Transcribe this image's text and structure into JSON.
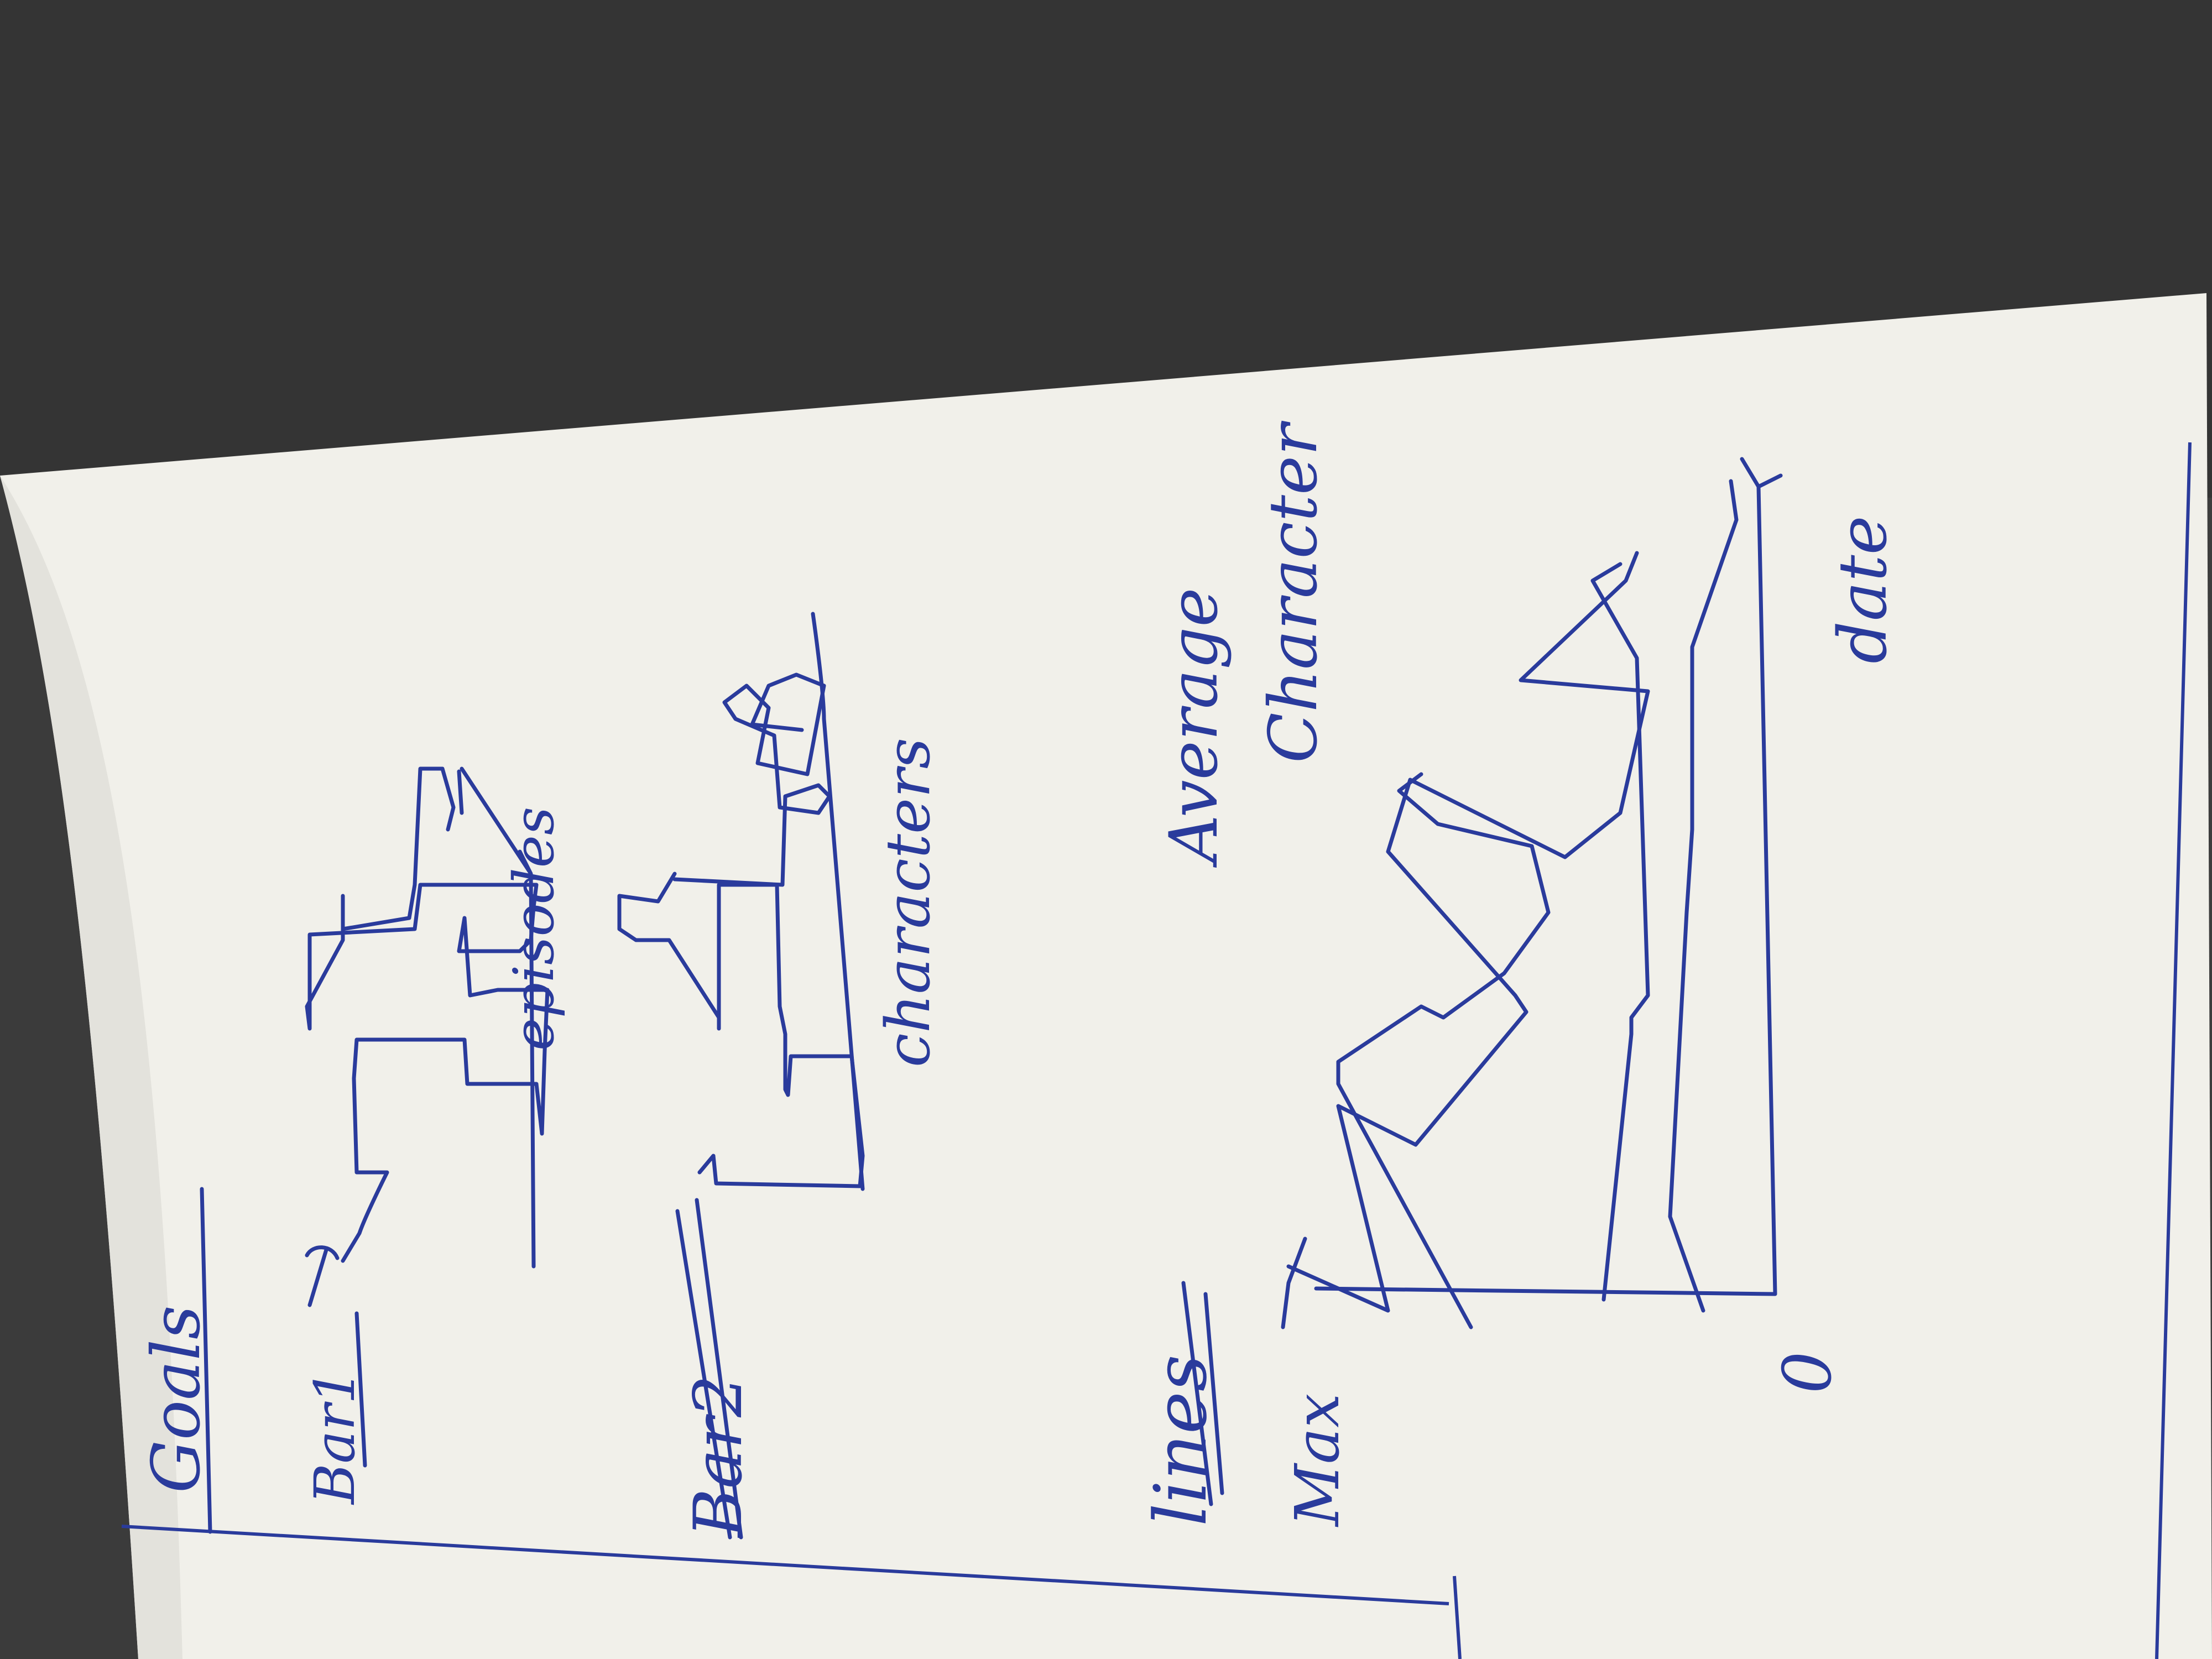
{
  "photo": {
    "background": "#3d3d3d",
    "paper_color": "#f1f0ea",
    "ink_color": "#2a3b9c",
    "orientation_note": "photo shows a sheet rotated 90 degrees counter-clockwise"
  },
  "sketch": {
    "heading": "Goals",
    "sections": [
      {
        "label": "Bar1",
        "axis_label": "episodes"
      },
      {
        "label": "Bar2",
        "axis_label": "characters"
      }
    ],
    "lines_section": {
      "label": "lines",
      "y_top_label": "Max",
      "y_origin_label": "0",
      "x_axis_label": "date",
      "side_note_line1": "Average",
      "side_note_line2": "Character"
    }
  }
}
